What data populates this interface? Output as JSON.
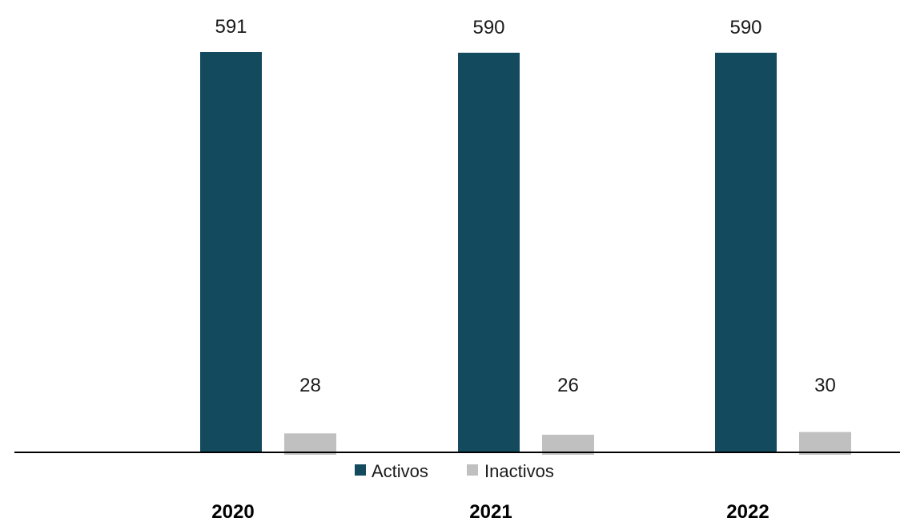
{
  "chart_data": {
    "type": "bar",
    "categories": [
      "2020",
      "2021",
      "2022"
    ],
    "series": [
      {
        "name": "Activos",
        "values": [
          591,
          590,
          590
        ],
        "color": "#134a5e"
      },
      {
        "name": "Inactivos",
        "values": [
          28,
          26,
          30
        ],
        "color": "#c0c0c0"
      }
    ],
    "data_labels": {
      "Activos": [
        "591",
        "590",
        "590"
      ],
      "Inactivos": [
        "28",
        "26",
        "30"
      ]
    },
    "title": "",
    "xlabel": "",
    "ylabel": "",
    "ylim": [
      0,
      591
    ],
    "grid": false,
    "legend": "bottom-center",
    "axis_color": "#000000"
  }
}
